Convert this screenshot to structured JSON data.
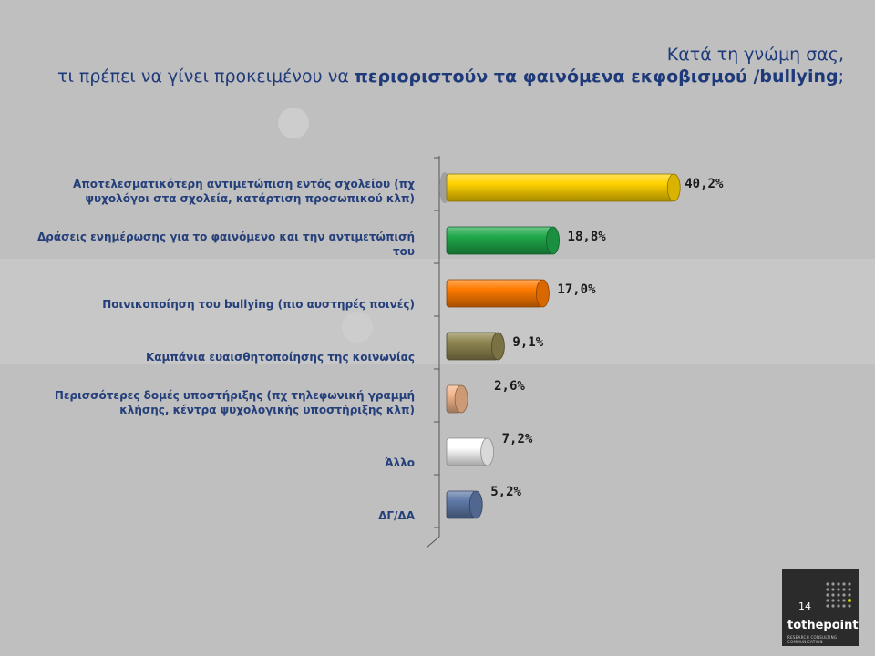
{
  "title": {
    "line1": "Κατά τη γνώμη σας,",
    "line2_prefix": "τι πρέπει να γίνει προκειμένου να ",
    "line2_bold": "περιοριστούν τα φαινόμενα εκφοβισμού /bullying",
    "line2_suffix": ";"
  },
  "chart_data": {
    "type": "bar",
    "orientation": "horizontal",
    "title": "Κατά τη γνώμη σας, τι πρέπει να γίνει προκειμένου να περιοριστούν τα φαινόμενα εκφοβισμού /bullying;",
    "unit": "%",
    "categories": [
      "Αποτελεσματικότερη αντιμετώπιση εντός σχολείου (πχ ψυχολόγοι στα σχολεία, κατάρτιση προσωπικού κλπ)",
      "Δράσεις ενημέρωσης για το φαινόμενο και την αντιμετώπισή του",
      "Ποινικοποίηση του bullying (πιο αυστηρές ποινές)",
      "Καμπάνια ευαισθητοποίησης της κοινωνίας",
      "Περισσότερες δομές υποστήριξης (πχ τηλεφωνική γραμμή κλήσης, κέντρα ψυχολογικής υποστήριξης κλπ)",
      "Άλλο",
      "ΔΓ/ΔΑ"
    ],
    "label_lines": [
      [
        "Αποτελεσματικότερη αντιμετώπιση εντός σχολείου (πχ",
        "ψυχολόγοι στα σχολεία, κατάρτιση προσωπικού κλπ)"
      ],
      [
        "Δράσεις ενημέρωσης  για το φαινόμενο και την αντιμετώπισή",
        "του"
      ],
      [
        "Ποινικοποίηση του bullying (πιο αυστηρές ποινές)"
      ],
      [
        "Καμπάνια ευαισθητοποίησης της κοινωνίας"
      ],
      [
        "Περισσότερες δομές υποστήριξης (πχ τηλεφωνική γραμμή",
        "κλήσης, κέντρα ψυχολογικής υποστήριξης κλπ)"
      ],
      [
        "Άλλο"
      ],
      [
        "ΔΓ/ΔΑ"
      ]
    ],
    "values": [
      40.2,
      18.8,
      17.0,
      9.1,
      2.6,
      7.2,
      5.2
    ],
    "value_labels": [
      "40,2%",
      "18,8%",
      "17,0%",
      "9,1%",
      "2,6%",
      "7,2%",
      "5,2%"
    ],
    "colors": [
      "#ffd200",
      "#1fa84a",
      "#ff7a00",
      "#8f8550",
      "#f2b58a",
      "#ffffff",
      "#5f79a8"
    ],
    "grid": false,
    "legend": "none"
  },
  "logo": {
    "page_number": "14",
    "brand": "tothepoint",
    "tagline": "RESEARCH CONSULTING COMMUNICATION"
  }
}
